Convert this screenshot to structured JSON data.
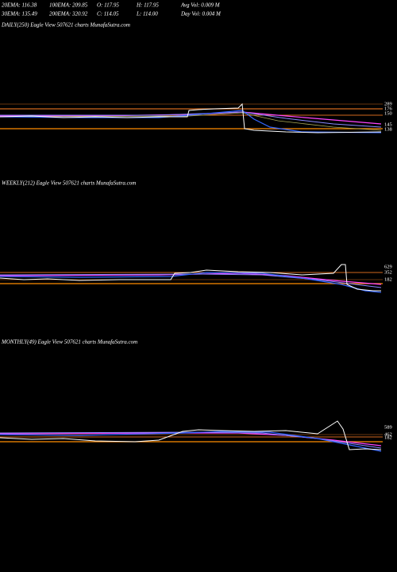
{
  "header": {
    "rows": [
      [
        "20EMA: 116.38",
        "100EMA: 209.85",
        "O: 117.95",
        "H: 117.95",
        "Avg Vol: 0.009  M"
      ],
      [
        "30EMA: 135.49",
        "200EMA: 320.92",
        "C: 114.05",
        "L: 114.00",
        "Day Vol: 0.004  M"
      ]
    ]
  },
  "panels": [
    {
      "label": "DAILY(250) Eagle  View  507621 charts MunafaSutra.com",
      "axis_labels": [
        289,
        176,
        150,
        145,
        138
      ]
    },
    {
      "label": "WEEKLY(212) Eagle  View  507621 charts MunafaSutra.com",
      "axis_labels": [
        629,
        352,
        182
      ]
    },
    {
      "label": "MONTHLY(49) Eagle  View  507621 charts MunafaSutra.com",
      "axis_labels": [
        589,
        462,
        182
      ]
    }
  ]
}
